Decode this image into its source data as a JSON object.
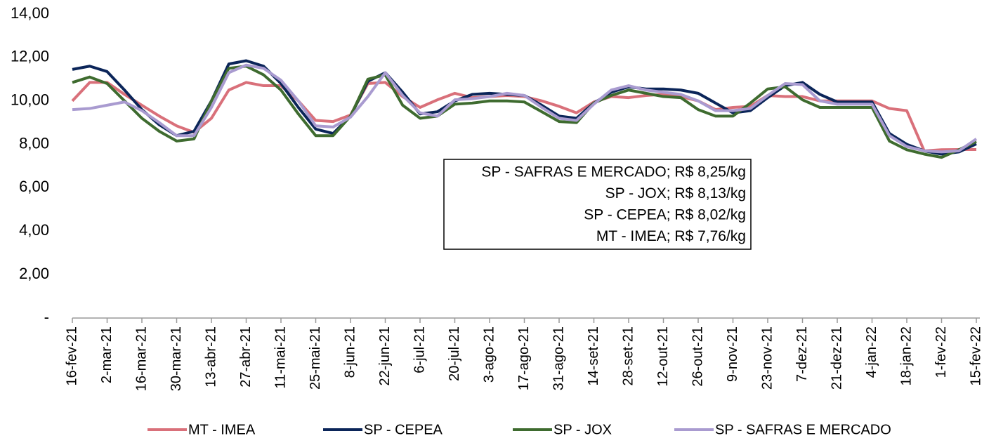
{
  "chart_data": {
    "type": "line",
    "categories": [
      "16-fev-21",
      null,
      "2-mar-21",
      null,
      "16-mar-21",
      null,
      "30-mar-21",
      null,
      "13-abr-21",
      null,
      "27-abr-21",
      null,
      "11-mai-21",
      null,
      "25-mai-21",
      null,
      "8-jun-21",
      null,
      "22-jun-21",
      null,
      "6-jul-21",
      null,
      "20-jul-21",
      null,
      "3-ago-21",
      null,
      "17-ago-21",
      null,
      "31-ago-21",
      null,
      "14-set-21",
      null,
      "28-set-21",
      null,
      "12-out-21",
      null,
      "26-out-21",
      null,
      "9-nov-21",
      null,
      "23-nov-21",
      null,
      "7-dez-21",
      null,
      "21-dez-21",
      null,
      "4-jan-22",
      null,
      "18-jan-22",
      null,
      "1-fev-22",
      null,
      "15-fev-22"
    ],
    "series": [
      {
        "name": "MT - IMEA",
        "color": "#d9707a",
        "values": [
          10.0,
          10.85,
          10.85,
          10.3,
          9.8,
          9.3,
          8.85,
          8.55,
          9.2,
          10.5,
          10.85,
          10.7,
          10.7,
          10.0,
          9.1,
          9.05,
          9.35,
          10.8,
          10.85,
          10.2,
          9.7,
          10.05,
          10.35,
          10.15,
          10.2,
          10.25,
          10.2,
          10.0,
          9.75,
          9.45,
          9.95,
          10.2,
          10.15,
          10.25,
          10.3,
          10.2,
          10.0,
          9.6,
          9.7,
          9.75,
          10.25,
          10.2,
          10.2,
          10.0,
          10.0,
          10.0,
          10.0,
          9.65,
          9.55,
          7.7,
          7.75,
          7.76,
          7.76
        ]
      },
      {
        "name": "SP - CEPEA",
        "color": "#0b2559",
        "values": [
          11.45,
          11.6,
          11.35,
          10.5,
          9.6,
          8.9,
          8.4,
          8.6,
          10.0,
          11.7,
          11.85,
          11.6,
          10.8,
          9.7,
          8.7,
          8.5,
          9.3,
          10.9,
          11.3,
          10.4,
          9.4,
          9.5,
          10.0,
          10.3,
          10.35,
          10.3,
          10.25,
          9.8,
          9.3,
          9.2,
          9.9,
          10.4,
          10.65,
          10.55,
          10.55,
          10.5,
          10.35,
          9.9,
          9.45,
          9.55,
          10.15,
          10.7,
          10.85,
          10.3,
          9.95,
          9.95,
          9.95,
          8.5,
          8.0,
          7.7,
          7.55,
          7.65,
          8.02
        ]
      },
      {
        "name": "SP - JOX",
        "color": "#3e6b2f",
        "values": [
          10.85,
          11.1,
          10.8,
          10.0,
          9.2,
          8.6,
          8.15,
          8.25,
          10.0,
          11.5,
          11.6,
          11.2,
          10.5,
          9.4,
          8.4,
          8.4,
          9.3,
          11.0,
          11.2,
          9.8,
          9.2,
          9.3,
          9.85,
          9.9,
          10.0,
          10.0,
          9.95,
          9.5,
          9.05,
          9.0,
          9.9,
          10.25,
          10.5,
          10.35,
          10.2,
          10.15,
          9.6,
          9.3,
          9.3,
          9.9,
          10.55,
          10.65,
          10.05,
          9.7,
          9.7,
          9.7,
          9.7,
          8.15,
          7.75,
          7.55,
          7.4,
          7.75,
          8.13
        ]
      },
      {
        "name": "SP - SAFRAS E MERCADO",
        "color": "#a99bd0",
        "values": [
          9.6,
          9.65,
          9.8,
          9.95,
          9.55,
          9.0,
          8.4,
          8.4,
          9.7,
          11.3,
          11.65,
          11.5,
          10.95,
          10.0,
          8.85,
          8.8,
          9.25,
          10.2,
          11.3,
          10.25,
          9.45,
          9.3,
          10.05,
          10.1,
          10.2,
          10.35,
          10.25,
          9.7,
          9.2,
          9.1,
          9.85,
          10.5,
          10.7,
          10.5,
          10.4,
          10.3,
          10.0,
          9.55,
          9.55,
          9.65,
          10.25,
          10.8,
          10.75,
          10.0,
          9.85,
          9.85,
          9.85,
          8.4,
          7.9,
          7.7,
          7.65,
          7.7,
          8.25
        ]
      }
    ],
    "ylim": [
      0,
      14
    ],
    "yticks": [
      {
        "value": 0,
        "label": "-"
      },
      {
        "value": 2,
        "label": "2,00"
      },
      {
        "value": 4,
        "label": "4,00"
      },
      {
        "value": 6,
        "label": "6,00"
      },
      {
        "value": 8,
        "label": "8,00"
      },
      {
        "value": 10,
        "label": "10,00"
      },
      {
        "value": 12,
        "label": "12,00"
      },
      {
        "value": 14,
        "label": "14,00"
      }
    ],
    "grid": false,
    "legend": "bottom",
    "annotations": [
      "SP - SAFRAS E MERCADO; R$ 8,25/kg",
      "SP - JOX; R$ 8,13/kg",
      "SP - CEPEA; R$ 8,02/kg",
      "MT - IMEA; R$ 7,76/kg"
    ]
  }
}
